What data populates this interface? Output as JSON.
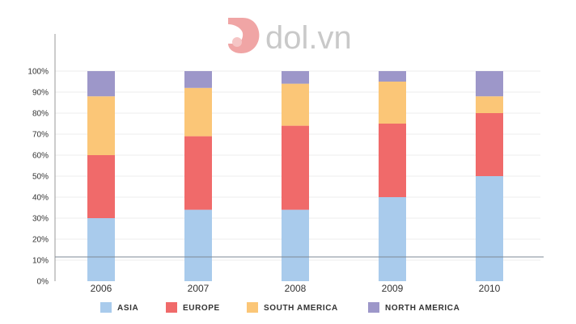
{
  "brand": {
    "logo_text": "dol.vn",
    "logo_icon": "dol-logo-icon",
    "logo_color": "#f0a5a5",
    "text_color": "#c9c9c9"
  },
  "chart_data": {
    "type": "bar",
    "stacked": true,
    "categories": [
      "2006",
      "2007",
      "2008",
      "2009",
      "2010"
    ],
    "series": [
      {
        "name": "ASIA",
        "color": "#a9cbec",
        "values": [
          30,
          34,
          34,
          40,
          50
        ]
      },
      {
        "name": "EUROPE",
        "color": "#f06a6a",
        "values": [
          30,
          35,
          40,
          35,
          30
        ]
      },
      {
        "name": "SOUTH AMERICA",
        "color": "#fbc677",
        "values": [
          28,
          23,
          20,
          20,
          8
        ]
      },
      {
        "name": "NORTH AMERICA",
        "color": "#9d97c9",
        "values": [
          12,
          8,
          6,
          5,
          12
        ]
      }
    ],
    "ylim": [
      0,
      100
    ],
    "yticks": [
      "0%",
      "10%",
      "20%",
      "30%",
      "40%",
      "50%",
      "60%",
      "70%",
      "80%",
      "90%",
      "100%"
    ],
    "title": "",
    "xlabel": "",
    "ylabel": "",
    "grid": true,
    "legend": "bottom"
  }
}
